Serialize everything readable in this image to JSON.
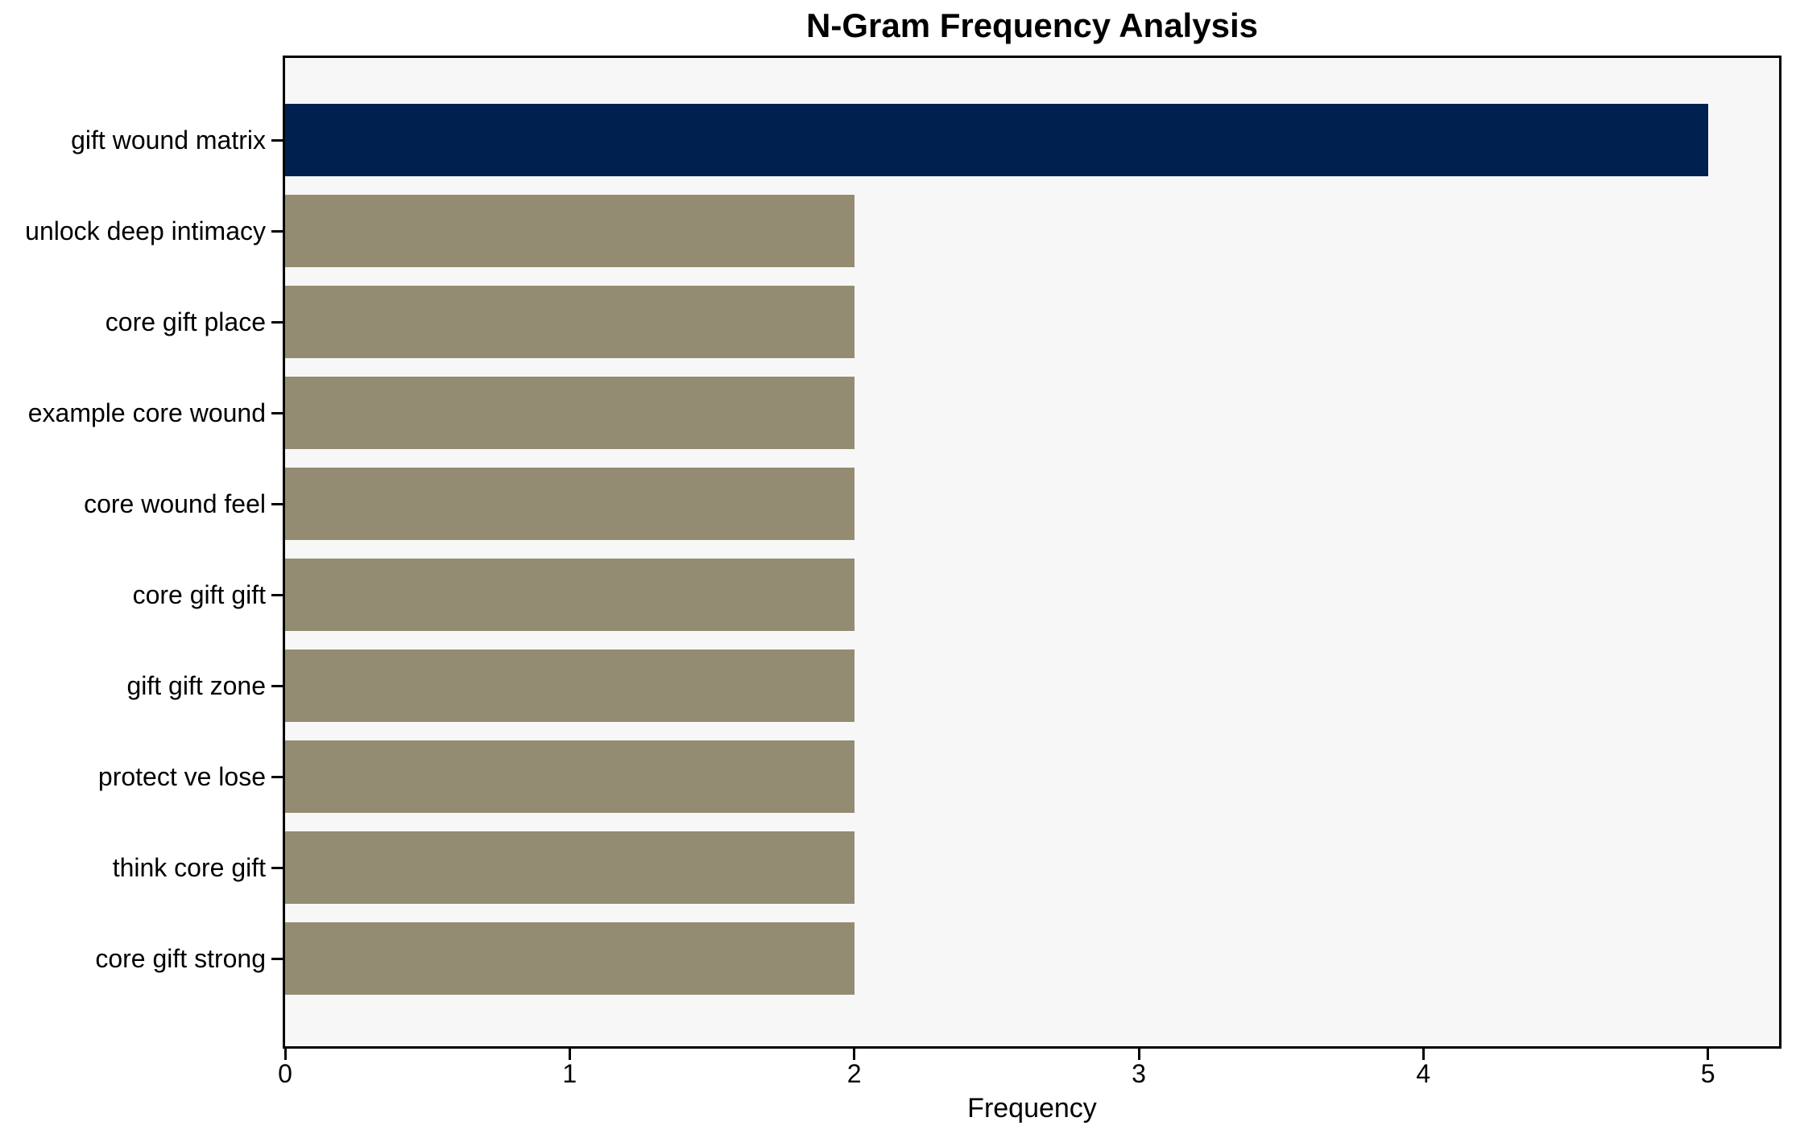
{
  "chart_data": {
    "type": "bar",
    "orientation": "horizontal",
    "title": "N-Gram Frequency Analysis",
    "xlabel": "Frequency",
    "ylabel": "",
    "categories": [
      "gift wound matrix",
      "unlock deep intimacy",
      "core gift place",
      "example core wound",
      "core wound feel",
      "core gift gift",
      "gift gift zone",
      "protect ve lose",
      "think core gift",
      "core gift strong"
    ],
    "values": [
      5,
      2,
      2,
      2,
      2,
      2,
      2,
      2,
      2,
      2
    ],
    "bar_colors": [
      "#002150",
      "#938c72",
      "#938c72",
      "#938c72",
      "#938c72",
      "#938c72",
      "#938c72",
      "#938c72",
      "#938c72",
      "#938c72"
    ],
    "xticks": [
      0,
      1,
      2,
      3,
      4,
      5
    ],
    "xlim": [
      0,
      5.25
    ],
    "grid": false,
    "legend": null,
    "colors": {
      "highlight_bar": "#002150",
      "default_bar": "#938c72",
      "plot_background": "#f7f7f7",
      "figure_background": "#ffffff",
      "spine": "#000000",
      "text": "#000000"
    }
  }
}
